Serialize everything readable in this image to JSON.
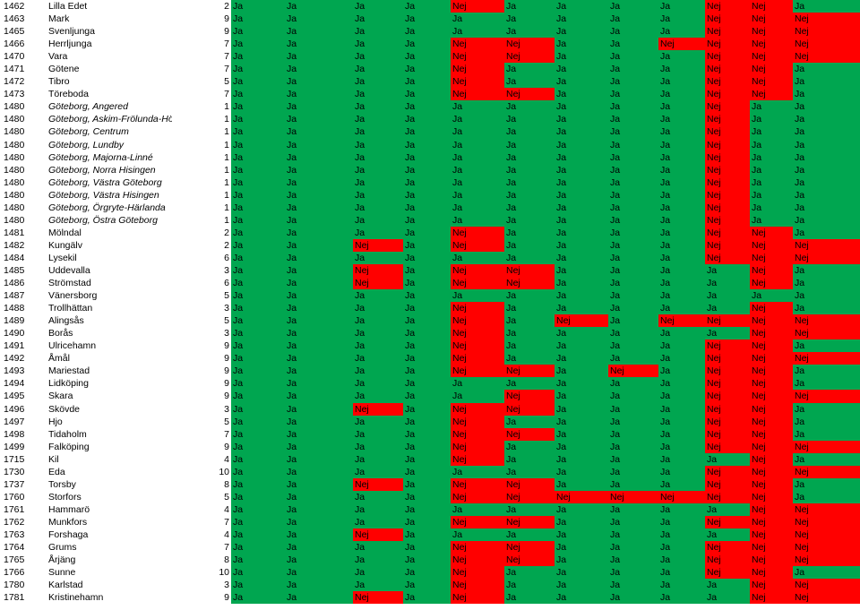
{
  "colors": {
    "ja": "#00a650",
    "nej": "#ff0000"
  },
  "rows": [
    {
      "code": "1462",
      "name": "Lilla Edet",
      "score": "2",
      "italic": false,
      "cells": [
        "Ja",
        "Ja",
        "Ja",
        "Ja",
        "Nej",
        "Ja",
        "Ja",
        "Ja",
        "Ja",
        "Nej",
        "Nej",
        "Ja"
      ]
    },
    {
      "code": "1463",
      "name": "Mark",
      "score": "9",
      "italic": false,
      "cells": [
        "Ja",
        "Ja",
        "Ja",
        "Ja",
        "Ja",
        "Ja",
        "Ja",
        "Ja",
        "Ja",
        "Nej",
        "Nej",
        "Nej"
      ]
    },
    {
      "code": "1465",
      "name": "Svenljunga",
      "score": "9",
      "italic": false,
      "cells": [
        "Ja",
        "Ja",
        "Ja",
        "Ja",
        "Ja",
        "Ja",
        "Ja",
        "Ja",
        "Ja",
        "Nej",
        "Nej",
        "Nej"
      ]
    },
    {
      "code": "1466",
      "name": "Herrljunga",
      "score": "7",
      "italic": false,
      "cells": [
        "Ja",
        "Ja",
        "Ja",
        "Ja",
        "Nej",
        "Nej",
        "Ja",
        "Ja",
        "Nej",
        "Nej",
        "Nej",
        "Nej"
      ]
    },
    {
      "code": "1470",
      "name": "Vara",
      "score": "7",
      "italic": false,
      "cells": [
        "Ja",
        "Ja",
        "Ja",
        "Ja",
        "Nej",
        "Nej",
        "Ja",
        "Ja",
        "Ja",
        "Nej",
        "Nej",
        "Nej"
      ]
    },
    {
      "code": "1471",
      "name": "Götene",
      "score": "7",
      "italic": false,
      "cells": [
        "Ja",
        "Ja",
        "Ja",
        "Ja",
        "Nej",
        "Ja",
        "Ja",
        "Ja",
        "Ja",
        "Nej",
        "Nej",
        "Ja"
      ]
    },
    {
      "code": "1472",
      "name": "Tibro",
      "score": "5",
      "italic": false,
      "cells": [
        "Ja",
        "Ja",
        "Ja",
        "Ja",
        "Nej",
        "Ja",
        "Ja",
        "Ja",
        "Ja",
        "Nej",
        "Nej",
        "Ja"
      ]
    },
    {
      "code": "1473",
      "name": "Töreboda",
      "score": "7",
      "italic": false,
      "cells": [
        "Ja",
        "Ja",
        "Ja",
        "Ja",
        "Nej",
        "Nej",
        "Ja",
        "Ja",
        "Ja",
        "Nej",
        "Nej",
        "Ja"
      ]
    },
    {
      "code": "1480",
      "name": "Göteborg, Angered",
      "score": "1",
      "italic": true,
      "cells": [
        "Ja",
        "Ja",
        "Ja",
        "Ja",
        "Ja",
        "Ja",
        "Ja",
        "Ja",
        "Ja",
        "Nej",
        "Ja",
        "Ja"
      ]
    },
    {
      "code": "1480",
      "name": "Göteborg, Askim-Frölunda-Högsbo",
      "score": "1",
      "italic": true,
      "cells": [
        "Ja",
        "Ja",
        "Ja",
        "Ja",
        "Ja",
        "Ja",
        "Ja",
        "Ja",
        "Ja",
        "Nej",
        "Ja",
        "Ja"
      ]
    },
    {
      "code": "1480",
      "name": "Göteborg, Centrum",
      "score": "1",
      "italic": true,
      "cells": [
        "Ja",
        "Ja",
        "Ja",
        "Ja",
        "Ja",
        "Ja",
        "Ja",
        "Ja",
        "Ja",
        "Nej",
        "Ja",
        "Ja"
      ]
    },
    {
      "code": "1480",
      "name": "Göteborg, Lundby",
      "score": "1",
      "italic": true,
      "cells": [
        "Ja",
        "Ja",
        "Ja",
        "Ja",
        "Ja",
        "Ja",
        "Ja",
        "Ja",
        "Ja",
        "Nej",
        "Ja",
        "Ja"
      ]
    },
    {
      "code": "1480",
      "name": "Göteborg, Majorna-Linné",
      "score": "1",
      "italic": true,
      "cells": [
        "Ja",
        "Ja",
        "Ja",
        "Ja",
        "Ja",
        "Ja",
        "Ja",
        "Ja",
        "Ja",
        "Nej",
        "Ja",
        "Ja"
      ]
    },
    {
      "code": "1480",
      "name": "Göteborg, Norra Hisingen",
      "score": "1",
      "italic": true,
      "cells": [
        "Ja",
        "Ja",
        "Ja",
        "Ja",
        "Ja",
        "Ja",
        "Ja",
        "Ja",
        "Ja",
        "Nej",
        "Ja",
        "Ja"
      ]
    },
    {
      "code": "1480",
      "name": "Göteborg, Västra Göteborg",
      "score": "1",
      "italic": true,
      "cells": [
        "Ja",
        "Ja",
        "Ja",
        "Ja",
        "Ja",
        "Ja",
        "Ja",
        "Ja",
        "Ja",
        "Nej",
        "Ja",
        "Ja"
      ]
    },
    {
      "code": "1480",
      "name": "Göteborg, Västra Hisingen",
      "score": "1",
      "italic": true,
      "cells": [
        "Ja",
        "Ja",
        "Ja",
        "Ja",
        "Ja",
        "Ja",
        "Ja",
        "Ja",
        "Ja",
        "Nej",
        "Ja",
        "Ja"
      ]
    },
    {
      "code": "1480",
      "name": "Göteborg, Örgryte-Härlanda",
      "score": "1",
      "italic": true,
      "cells": [
        "Ja",
        "Ja",
        "Ja",
        "Ja",
        "Ja",
        "Ja",
        "Ja",
        "Ja",
        "Ja",
        "Nej",
        "Ja",
        "Ja"
      ]
    },
    {
      "code": "1480",
      "name": "Göteborg, Östra Göteborg",
      "score": "1",
      "italic": true,
      "cells": [
        "Ja",
        "Ja",
        "Ja",
        "Ja",
        "Ja",
        "Ja",
        "Ja",
        "Ja",
        "Ja",
        "Nej",
        "Ja",
        "Ja"
      ]
    },
    {
      "code": "1481",
      "name": "Mölndal",
      "score": "2",
      "italic": false,
      "cells": [
        "Ja",
        "Ja",
        "Ja",
        "Ja",
        "Nej",
        "Ja",
        "Ja",
        "Ja",
        "Ja",
        "Nej",
        "Nej",
        "Ja"
      ]
    },
    {
      "code": "1482",
      "name": "Kungälv",
      "score": "2",
      "italic": false,
      "cells": [
        "Ja",
        "Ja",
        "Nej",
        "Ja",
        "Nej",
        "Ja",
        "Ja",
        "Ja",
        "Ja",
        "Nej",
        "Nej",
        "Nej"
      ]
    },
    {
      "code": "1484",
      "name": "Lysekil",
      "score": "6",
      "italic": false,
      "cells": [
        "Ja",
        "Ja",
        "Ja",
        "Ja",
        "Ja",
        "Ja",
        "Ja",
        "Ja",
        "Ja",
        "Nej",
        "Nej",
        "Nej"
      ]
    },
    {
      "code": "1485",
      "name": "Uddevalla",
      "score": "3",
      "italic": false,
      "cells": [
        "Ja",
        "Ja",
        "Nej",
        "Ja",
        "Nej",
        "Nej",
        "Ja",
        "Ja",
        "Ja",
        "Ja",
        "Nej",
        "Ja"
      ]
    },
    {
      "code": "1486",
      "name": "Strömstad",
      "score": "6",
      "italic": false,
      "cells": [
        "Ja",
        "Ja",
        "Nej",
        "Ja",
        "Nej",
        "Nej",
        "Ja",
        "Ja",
        "Ja",
        "Ja",
        "Nej",
        "Ja"
      ]
    },
    {
      "code": "1487",
      "name": "Vänersborg",
      "score": "5",
      "italic": false,
      "cells": [
        "Ja",
        "Ja",
        "Ja",
        "Ja",
        "Ja",
        "Ja",
        "Ja",
        "Ja",
        "Ja",
        "Ja",
        "Ja",
        "Ja"
      ]
    },
    {
      "code": "1488",
      "name": "Trollhättan",
      "score": "3",
      "italic": false,
      "cells": [
        "Ja",
        "Ja",
        "Ja",
        "Ja",
        "Nej",
        "Ja",
        "Ja",
        "Ja",
        "Ja",
        "Ja",
        "Nej",
        "Ja"
      ]
    },
    {
      "code": "1489",
      "name": "Alingsås",
      "score": "5",
      "italic": false,
      "cells": [
        "Ja",
        "Ja",
        "Ja",
        "Ja",
        "Nej",
        "Ja",
        "Nej",
        "Ja",
        "Nej",
        "Nej",
        "Nej",
        "Nej"
      ]
    },
    {
      "code": "1490",
      "name": "Borås",
      "score": "3",
      "italic": false,
      "cells": [
        "Ja",
        "Ja",
        "Ja",
        "Ja",
        "Nej",
        "Ja",
        "Ja",
        "Ja",
        "Ja",
        "Ja",
        "Nej",
        "Nej"
      ]
    },
    {
      "code": "1491",
      "name": "Ulricehamn",
      "score": "9",
      "italic": false,
      "cells": [
        "Ja",
        "Ja",
        "Ja",
        "Ja",
        "Nej",
        "Ja",
        "Ja",
        "Ja",
        "Ja",
        "Nej",
        "Nej",
        "Ja"
      ]
    },
    {
      "code": "1492",
      "name": "Åmål",
      "score": "9",
      "italic": false,
      "cells": [
        "Ja",
        "Ja",
        "Ja",
        "Ja",
        "Nej",
        "Ja",
        "Ja",
        "Ja",
        "Ja",
        "Nej",
        "Nej",
        "Nej"
      ]
    },
    {
      "code": "1493",
      "name": "Mariestad",
      "score": "9",
      "italic": false,
      "cells": [
        "Ja",
        "Ja",
        "Ja",
        "Ja",
        "Nej",
        "Nej",
        "Ja",
        "Nej",
        "Ja",
        "Nej",
        "Nej",
        "Ja"
      ]
    },
    {
      "code": "1494",
      "name": "Lidköping",
      "score": "9",
      "italic": false,
      "cells": [
        "Ja",
        "Ja",
        "Ja",
        "Ja",
        "Ja",
        "Ja",
        "Ja",
        "Ja",
        "Ja",
        "Nej",
        "Nej",
        "Ja"
      ]
    },
    {
      "code": "1495",
      "name": "Skara",
      "score": "9",
      "italic": false,
      "cells": [
        "Ja",
        "Ja",
        "Ja",
        "Ja",
        "Ja",
        "Nej",
        "Ja",
        "Ja",
        "Ja",
        "Nej",
        "Nej",
        "Nej"
      ]
    },
    {
      "code": "1496",
      "name": "Skövde",
      "score": "3",
      "italic": false,
      "cells": [
        "Ja",
        "Ja",
        "Nej",
        "Ja",
        "Nej",
        "Nej",
        "Ja",
        "Ja",
        "Ja",
        "Nej",
        "Nej",
        "Ja"
      ]
    },
    {
      "code": "1497",
      "name": "Hjo",
      "score": "5",
      "italic": false,
      "cells": [
        "Ja",
        "Ja",
        "Ja",
        "Ja",
        "Nej",
        "Ja",
        "Ja",
        "Ja",
        "Ja",
        "Nej",
        "Nej",
        "Ja"
      ]
    },
    {
      "code": "1498",
      "name": "Tidaholm",
      "score": "7",
      "italic": false,
      "cells": [
        "Ja",
        "Ja",
        "Ja",
        "Ja",
        "Nej",
        "Nej",
        "Ja",
        "Ja",
        "Ja",
        "Nej",
        "Nej",
        "Ja"
      ]
    },
    {
      "code": "1499",
      "name": "Falköping",
      "score": "9",
      "italic": false,
      "cells": [
        "Ja",
        "Ja",
        "Ja",
        "Ja",
        "Nej",
        "Ja",
        "Ja",
        "Ja",
        "Ja",
        "Nej",
        "Nej",
        "Nej"
      ]
    },
    {
      "code": "1715",
      "name": "Kil",
      "score": "4",
      "italic": false,
      "cells": [
        "Ja",
        "Ja",
        "Ja",
        "Ja",
        "Nej",
        "Ja",
        "Ja",
        "Ja",
        "Ja",
        "Ja",
        "Nej",
        "Ja"
      ]
    },
    {
      "code": "1730",
      "name": "Eda",
      "score": "10",
      "italic": false,
      "cells": [
        "Ja",
        "Ja",
        "Ja",
        "Ja",
        "Ja",
        "Ja",
        "Ja",
        "Ja",
        "Ja",
        "Nej",
        "Nej",
        "Nej"
      ]
    },
    {
      "code": "1737",
      "name": "Torsby",
      "score": "8",
      "italic": false,
      "cells": [
        "Ja",
        "Ja",
        "Nej",
        "Ja",
        "Nej",
        "Nej",
        "Ja",
        "Ja",
        "Ja",
        "Nej",
        "Nej",
        "Ja"
      ]
    },
    {
      "code": "1760",
      "name": "Storfors",
      "score": "5",
      "italic": false,
      "cells": [
        "Ja",
        "Ja",
        "Ja",
        "Ja",
        "Nej",
        "Nej",
        "Nej",
        "Nej",
        "Nej",
        "Nej",
        "Nej",
        "Ja"
      ]
    },
    {
      "code": "1761",
      "name": "Hammarö",
      "score": "4",
      "italic": false,
      "cells": [
        "Ja",
        "Ja",
        "Ja",
        "Ja",
        "Ja",
        "Ja",
        "Ja",
        "Ja",
        "Ja",
        "Ja",
        "Nej",
        "Nej"
      ]
    },
    {
      "code": "1762",
      "name": "Munkfors",
      "score": "7",
      "italic": false,
      "cells": [
        "Ja",
        "Ja",
        "Ja",
        "Ja",
        "Nej",
        "Nej",
        "Ja",
        "Ja",
        "Ja",
        "Nej",
        "Nej",
        "Nej"
      ]
    },
    {
      "code": "1763",
      "name": "Forshaga",
      "score": "4",
      "italic": false,
      "cells": [
        "Ja",
        "Ja",
        "Nej",
        "Ja",
        "Ja",
        "Ja",
        "Ja",
        "Ja",
        "Ja",
        "Ja",
        "Nej",
        "Nej"
      ]
    },
    {
      "code": "1764",
      "name": "Grums",
      "score": "7",
      "italic": false,
      "cells": [
        "Ja",
        "Ja",
        "Ja",
        "Ja",
        "Nej",
        "Nej",
        "Ja",
        "Ja",
        "Ja",
        "Nej",
        "Nej",
        "Nej"
      ]
    },
    {
      "code": "1765",
      "name": "Årjäng",
      "score": "8",
      "italic": false,
      "cells": [
        "Ja",
        "Ja",
        "Ja",
        "Ja",
        "Nej",
        "Nej",
        "Ja",
        "Ja",
        "Ja",
        "Nej",
        "Nej",
        "Nej"
      ]
    },
    {
      "code": "1766",
      "name": "Sunne",
      "score": "10",
      "italic": false,
      "cells": [
        "Ja",
        "Ja",
        "Ja",
        "Ja",
        "Nej",
        "Ja",
        "Ja",
        "Ja",
        "Ja",
        "Nej",
        "Nej",
        "Ja"
      ]
    },
    {
      "code": "1780",
      "name": "Karlstad",
      "score": "3",
      "italic": false,
      "cells": [
        "Ja",
        "Ja",
        "Ja",
        "Ja",
        "Nej",
        "Ja",
        "Ja",
        "Ja",
        "Ja",
        "Ja",
        "Nej",
        "Nej"
      ]
    },
    {
      "code": "1781",
      "name": "Kristinehamn",
      "score": "9",
      "italic": false,
      "cells": [
        "Ja",
        "Ja",
        "Nej",
        "Ja",
        "Nej",
        "Ja",
        "Ja",
        "Ja",
        "Ja",
        "Ja",
        "Nej",
        "Nej"
      ]
    }
  ]
}
